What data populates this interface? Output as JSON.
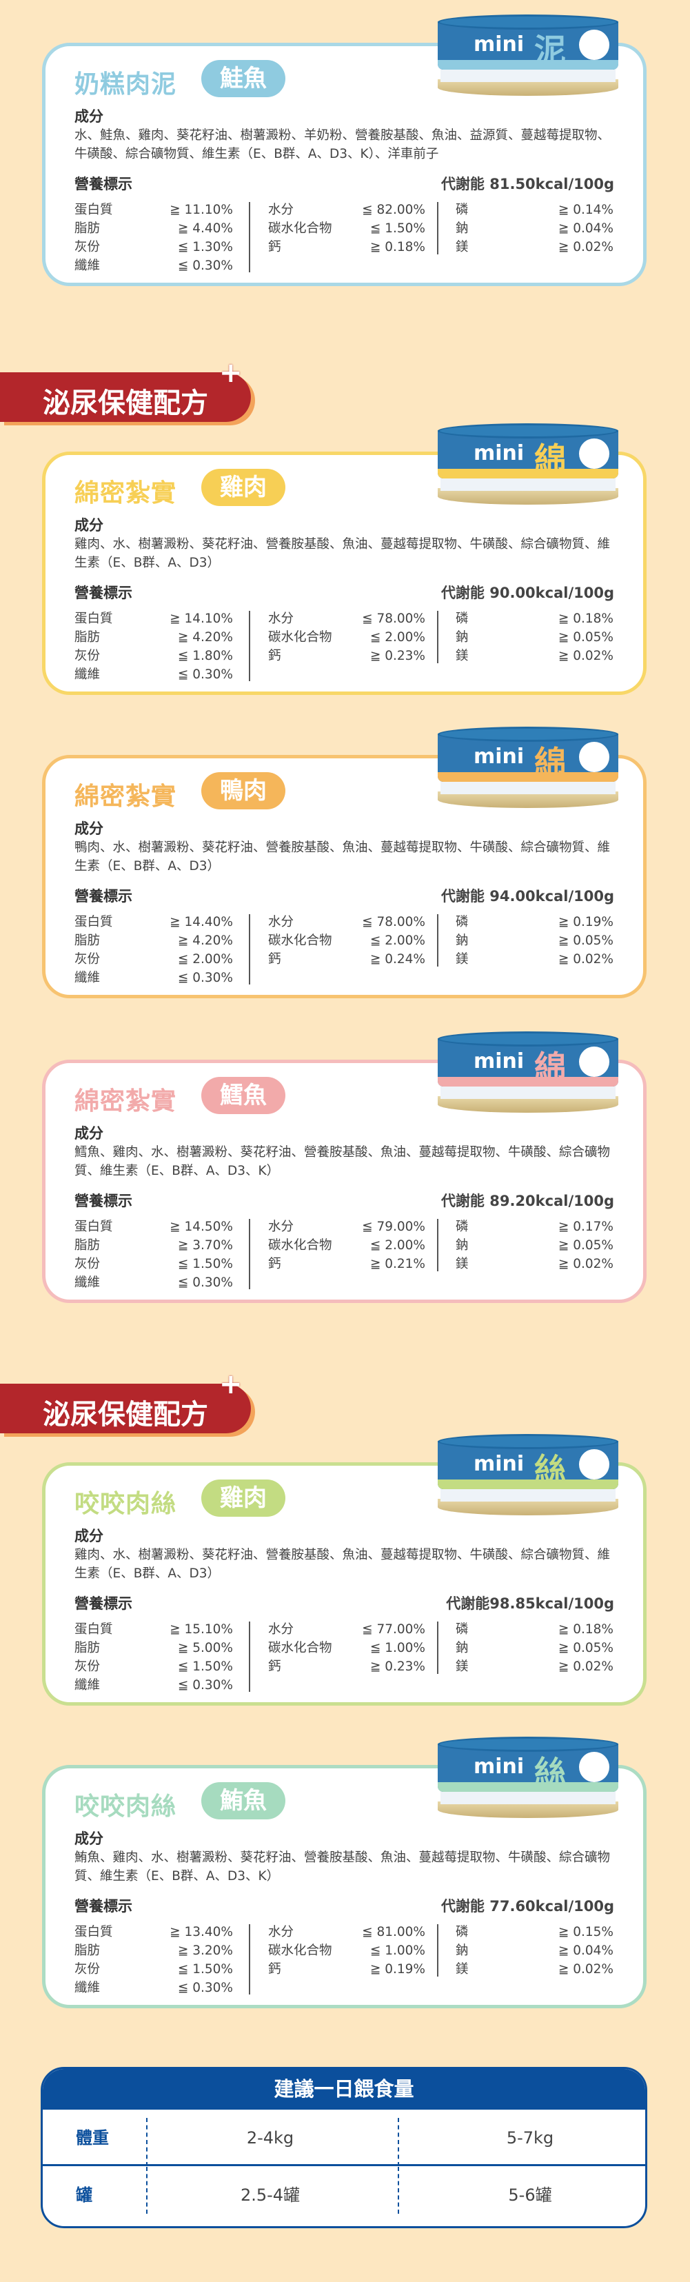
{
  "labels": {
    "ingredients_heading": "成分",
    "nutrition_heading": "營養標示",
    "col1": [
      "蛋白質",
      "脂肪",
      "灰份",
      "纖維"
    ],
    "col2": [
      "水分",
      "碳水化合物",
      "鈣"
    ],
    "col3": [
      "磷",
      "鈉",
      "鎂"
    ]
  },
  "banner": {
    "text": "泌尿保健配方",
    "plus": "+"
  },
  "colors": {
    "background": "#fde7c1",
    "banner": "#b3262b",
    "table": "#0b4f9c"
  },
  "cards": [
    {
      "title": "奶糕肉泥",
      "flavor": "鮭魚",
      "can_mini": "mini",
      "can_glyph": "泥",
      "accent": "#8fcbe0",
      "border": "#a9d8e6",
      "ingredients": "水、鮭魚、雞肉、葵花籽油、樹薯澱粉、羊奶粉、營養胺基酸、魚油、益源質、蔓越莓提取物、牛磺酸、綜合礦物質、維生素（E、B群、A、D3、K）、洋車前子",
      "kcal": "代謝能 81.50kcal/100g",
      "col1": [
        "≧ 11.10%",
        "≧ 4.40%",
        "≦ 1.30%",
        "≦ 0.30%"
      ],
      "col2": [
        "≦ 82.00%",
        "≦ 1.50%",
        "≧ 0.18%"
      ],
      "col3": [
        "≧ 0.14%",
        "≧ 0.04%",
        "≧ 0.02%"
      ]
    },
    {
      "title": "綿密紮實",
      "flavor": "雞肉",
      "can_mini": "mini",
      "can_glyph": "綿",
      "accent": "#f7cf55",
      "border": "#f8d767",
      "ingredients": "雞肉、水、樹薯澱粉、葵花籽油、營養胺基酸、魚油、蔓越莓提取物、牛磺酸、綜合礦物質、維生素（E、B群、A、D3）",
      "kcal": "代謝能 90.00kcal/100g",
      "col1": [
        "≧ 14.10%",
        "≧ 4.20%",
        "≦ 1.80%",
        "≦ 0.30%"
      ],
      "col2": [
        "≦ 78.00%",
        "≦ 2.00%",
        "≧ 0.23%"
      ],
      "col3": [
        "≧ 0.18%",
        "≧ 0.05%",
        "≧ 0.02%"
      ]
    },
    {
      "title": "綿密紮實",
      "flavor": "鴨肉",
      "can_mini": "mini",
      "can_glyph": "綿",
      "accent": "#f5b65a",
      "border": "#f7c370",
      "ingredients": "鴨肉、水、樹薯澱粉、葵花籽油、營養胺基酸、魚油、蔓越莓提取物、牛磺酸、綜合礦物質、維生素（E、B群、A、D3）",
      "kcal": "代謝能 94.00kcal/100g",
      "col1": [
        "≧ 14.40%",
        "≧ 4.20%",
        "≦ 2.00%",
        "≦ 0.30%"
      ],
      "col2": [
        "≦ 78.00%",
        "≦ 2.00%",
        "≧ 0.24%"
      ],
      "col3": [
        "≧ 0.19%",
        "≧ 0.05%",
        "≧ 0.02%"
      ]
    },
    {
      "title": "綿密紮實",
      "flavor": "鱈魚",
      "can_mini": "mini",
      "can_glyph": "綿",
      "accent": "#f2aaaa",
      "border": "#f5bcbc",
      "ingredients": "鱈魚、雞肉、水、樹薯澱粉、葵花籽油、營養胺基酸、魚油、蔓越莓提取物、牛磺酸、綜合礦物質、維生素（E、B群、A、D3、K）",
      "kcal": "代謝能 89.20kcal/100g",
      "col1": [
        "≧ 14.50%",
        "≧ 3.70%",
        "≦ 1.50%",
        "≦ 0.30%"
      ],
      "col2": [
        "≦ 79.00%",
        "≦ 2.00%",
        "≧ 0.21%"
      ],
      "col3": [
        "≧ 0.17%",
        "≧ 0.05%",
        "≧ 0.02%"
      ]
    },
    {
      "title": "咬咬肉絲",
      "flavor": "雞肉",
      "can_mini": "mini",
      "can_glyph": "絲",
      "accent": "#c3dc82",
      "border": "#c9df90",
      "ingredients": "雞肉、水、樹薯澱粉、葵花籽油、營養胺基酸、魚油、蔓越莓提取物、牛磺酸、綜合礦物質、維生素（E、B群、A、D3）",
      "kcal": "代謝能98.85kcal/100g",
      "col1": [
        "≧ 15.10%",
        "≧ 5.00%",
        "≦ 1.50%",
        "≦ 0.30%"
      ],
      "col2": [
        "≦ 77.00%",
        "≦ 1.00%",
        "≧ 0.23%"
      ],
      "col3": [
        "≧ 0.18%",
        "≧ 0.05%",
        "≧ 0.02%"
      ]
    },
    {
      "title": "咬咬肉絲",
      "flavor": "鮪魚",
      "can_mini": "mini",
      "can_glyph": "絲",
      "accent": "#a6dbbf",
      "border": "#acdcc3",
      "ingredients": "鮪魚、雞肉、水、樹薯澱粉、葵花籽油、營養胺基酸、魚油、蔓越莓提取物、牛磺酸、綜合礦物質、維生素（E、B群、A、D3、K）",
      "kcal": "代謝能 77.60kcal/100g",
      "col1": [
        "≧ 13.40%",
        "≧ 3.20%",
        "≦ 1.50%",
        "≦ 0.30%"
      ],
      "col2": [
        "≦ 81.00%",
        "≦ 1.00%",
        "≧ 0.19%"
      ],
      "col3": [
        "≧ 0.15%",
        "≧ 0.04%",
        "≧ 0.02%"
      ]
    }
  ],
  "feeding": {
    "title": "建議一日餵食量",
    "rows": [
      {
        "label": "體重",
        "values": [
          "2-4kg",
          "5-7kg"
        ]
      },
      {
        "label": "罐",
        "values": [
          "2.5-4罐",
          "5-6罐"
        ]
      }
    ]
  }
}
